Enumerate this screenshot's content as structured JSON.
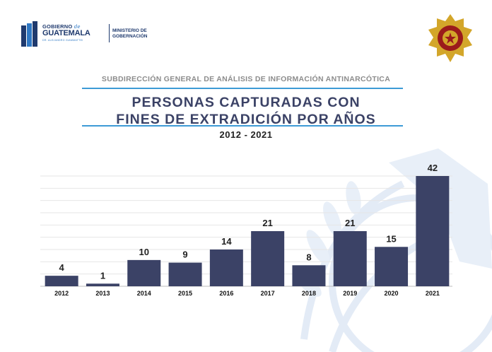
{
  "header": {
    "gov_line1_a": "GOBIERNO",
    "gov_line1_b": "de",
    "gov_line2": "GUATEMALA",
    "gov_line3": "DR. ALEJANDRO GIAMMATTEI",
    "ministry": "MINISTERIO DE GOBERNACIÓN"
  },
  "subtitle": "SUBDIRECCIÓN GENERAL DE ANÁLISIS DE INFORMACIÓN ANTINARCÓTICA",
  "title_line1": "PERSONAS  CAPTURADAS  CON",
  "title_line2": "FINES  DE  EXTRADICIÓN  POR  AÑOS",
  "year_range": "2012 - 2021",
  "colors": {
    "bar": "#3b4266",
    "accent": "#3d9bd6",
    "badge_red": "#9b1b1b",
    "badge_gold": "#d3a62a"
  },
  "chart_data": {
    "type": "bar",
    "title": "PERSONAS CAPTURADAS CON FINES DE EXTRADICIÓN POR AÑOS",
    "subtitle": "2012 - 2021",
    "xlabel": "",
    "ylabel": "",
    "categories": [
      "2012",
      "2013",
      "2014",
      "2015",
      "2016",
      "2017",
      "2018",
      "2019",
      "2020",
      "2021"
    ],
    "values": [
      4,
      1,
      10,
      9,
      14,
      21,
      8,
      21,
      15,
      42
    ],
    "ylim": [
      0,
      42
    ],
    "grid": true,
    "data_labels": true,
    "legend": "none"
  }
}
